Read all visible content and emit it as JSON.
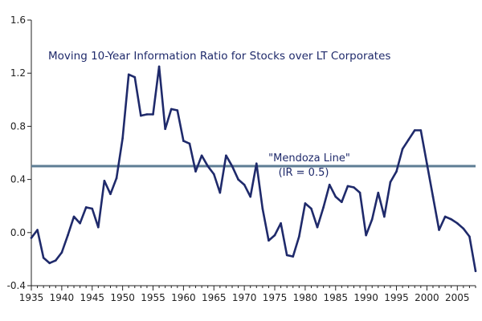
{
  "chart_data": {
    "type": "line",
    "title": "Moving 10-Year Information Ratio for Stocks over LT Corporates",
    "xlabel": "",
    "ylabel": "",
    "xlim": [
      1935,
      2008
    ],
    "ylim": [
      -0.4,
      1.6
    ],
    "x_ticks": [
      1935,
      1940,
      1945,
      1950,
      1955,
      1960,
      1965,
      1970,
      1975,
      1980,
      1985,
      1990,
      1995,
      2000,
      2005
    ],
    "y_ticks": [
      -0.4,
      0.0,
      0.4,
      0.8,
      1.2,
      1.6
    ],
    "y_tick_labels": [
      "-0.4",
      "0.0",
      "0.4",
      "0.8",
      "1.2",
      "1.6"
    ],
    "grid": false,
    "colors": {
      "series": "#1f2a6b",
      "reference_line": "#5e7d94"
    },
    "series": [
      {
        "x": [
          1935,
          1936,
          1937,
          1938,
          1939,
          1940,
          1941,
          1942,
          1943,
          1944,
          1945,
          1946,
          1947,
          1948,
          1949,
          1950,
          1951,
          1952,
          1953,
          1954,
          1955,
          1956,
          1957,
          1958,
          1959,
          1960,
          1961,
          1962,
          1963,
          1964,
          1965,
          1966,
          1967,
          1968,
          1969,
          1970,
          1971,
          1972,
          1973,
          1974,
          1975,
          1976,
          1977,
          1978,
          1979,
          1980,
          1981,
          1982,
          1983,
          1984,
          1985,
          1986,
          1987,
          1988,
          1989,
          1990,
          1991,
          1992,
          1993,
          1994,
          1995,
          1996,
          1997,
          1998,
          1999,
          2000,
          2001,
          2002,
          2003,
          2004,
          2005,
          2006,
          2007,
          2008
        ],
        "values": [
          -0.04,
          0.02,
          -0.19,
          -0.23,
          -0.21,
          -0.15,
          -0.02,
          0.12,
          0.07,
          0.19,
          0.18,
          0.04,
          0.39,
          0.29,
          0.41,
          0.71,
          1.19,
          1.17,
          0.88,
          0.89,
          0.89,
          1.25,
          0.78,
          0.93,
          0.92,
          0.69,
          0.67,
          0.46,
          0.58,
          0.5,
          0.44,
          0.3,
          0.58,
          0.5,
          0.4,
          0.36,
          0.27,
          0.52,
          0.18,
          -0.06,
          -0.02,
          0.07,
          -0.17,
          -0.18,
          -0.03,
          0.22,
          0.18,
          0.04,
          0.19,
          0.36,
          0.27,
          0.23,
          0.35,
          0.34,
          0.3,
          -0.02,
          0.1,
          0.3,
          0.12,
          0.38,
          0.46,
          0.63,
          0.7,
          0.77,
          0.77,
          0.52,
          0.27,
          0.02,
          0.12,
          0.1,
          0.07,
          0.03,
          -0.03,
          -0.29
        ]
      }
    ],
    "reference_line": {
      "y": 0.5,
      "label_line1": "\"Mendoza Line\"",
      "label_line2": "(IR = 0.5)"
    }
  }
}
